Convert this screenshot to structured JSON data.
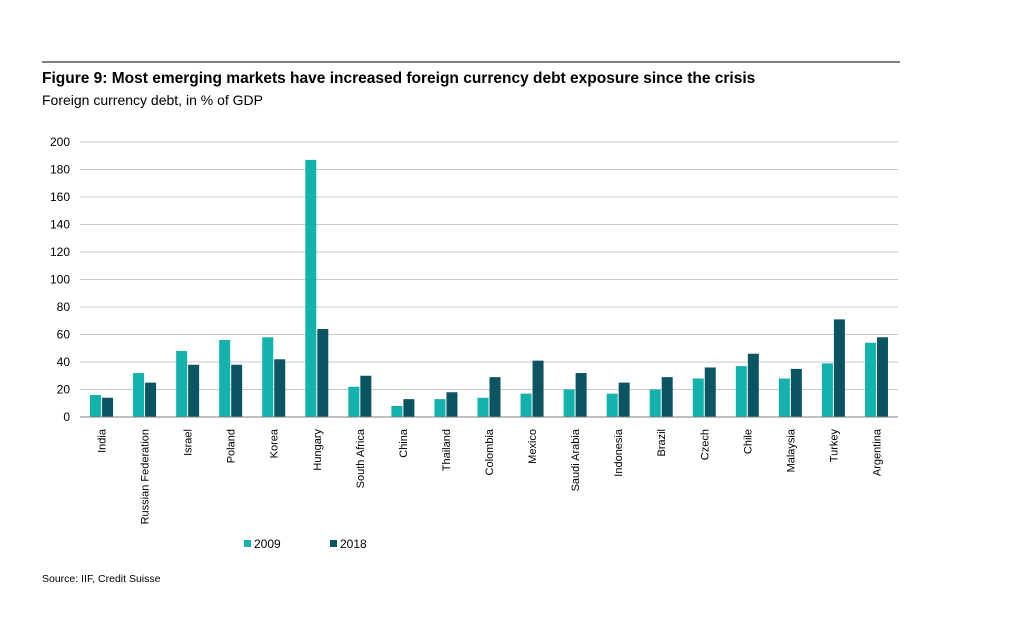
{
  "header": {
    "title": "Figure 9: Most emerging markets have increased foreign currency debt exposure since the crisis",
    "subtitle": "Foreign currency debt, in % of GDP"
  },
  "footer": {
    "source": "Source: IIF, Credit Suisse"
  },
  "colors": {
    "series_2009": "#13b2ad",
    "series_2018": "#0b5563",
    "gridline": "#c8c8c8",
    "axis": "#7f7f7f"
  },
  "chart_data": {
    "type": "bar",
    "title": "Figure 9: Most emerging markets have increased foreign currency debt exposure since the crisis",
    "subtitle": "Foreign currency debt, in % of GDP",
    "categories": [
      "India",
      "Russian Federation",
      "Israel",
      "Poland",
      "Korea",
      "Hungary",
      "South Africa",
      "China",
      "Thailand",
      "Colombia",
      "Mexico",
      "Saudi Arabia",
      "Indonesia",
      "Brazil",
      "Czech",
      "Chile",
      "Malaysia",
      "Turkey",
      "Argentina"
    ],
    "series": [
      {
        "name": "2009",
        "values": [
          16,
          32,
          48,
          56,
          58,
          187,
          22,
          8,
          13,
          14,
          17,
          20,
          17,
          20,
          28,
          37,
          28,
          39,
          54
        ]
      },
      {
        "name": "2018",
        "values": [
          14,
          25,
          38,
          38,
          42,
          64,
          30,
          13,
          18,
          29,
          41,
          32,
          25,
          29,
          36,
          46,
          35,
          71,
          58
        ]
      }
    ],
    "xlabel": "",
    "ylabel": "",
    "ylim": [
      0,
      200
    ],
    "yticks": [
      0,
      20,
      40,
      60,
      80,
      100,
      120,
      140,
      160,
      180,
      200
    ],
    "grid": true,
    "legend_position": "bottom-left"
  }
}
